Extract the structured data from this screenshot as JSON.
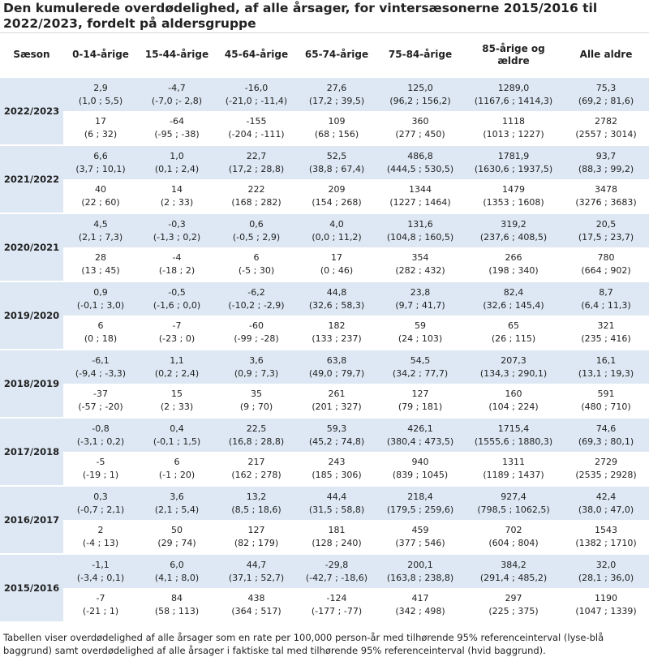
{
  "title": "Den kumulerede overdødelighed, af alle årsager, for vintersæsonerne 2015/2016 til 2022/2023, fordelt på aldersgruppe",
  "headers": [
    "Sæson",
    "0-14-årige",
    "15-44-årige",
    "45-64-årige",
    "65-74-årige",
    "75-84-årige",
    "85-årige og ældre",
    "Alle aldre"
  ],
  "seasons": [
    {
      "label": "2022/2023",
      "rate": [
        [
          "2,9",
          "(1,0 ; 5,5)"
        ],
        [
          "-4,7",
          "(-7,0 ;- 2,8)"
        ],
        [
          "-16,0",
          "(-21,0 ; -11,4)"
        ],
        [
          "27,6",
          "(17,2 ; 39,5)"
        ],
        [
          "125,0",
          "(96,2 ; 156,2)"
        ],
        [
          "1289,0",
          "(1167,6 ; 1414,3)"
        ],
        [
          "75,3",
          "(69,2 ; 81,6)"
        ]
      ],
      "count": [
        [
          "17",
          "(6 ; 32)"
        ],
        [
          "-64",
          "(-95 ; -38)"
        ],
        [
          "-155",
          "(-204 ; -111)"
        ],
        [
          "109",
          "(68 ; 156)"
        ],
        [
          "360",
          "(277 ; 450)"
        ],
        [
          "1118",
          "(1013 ; 1227)"
        ],
        [
          "2782",
          "(2557 ; 3014)"
        ]
      ]
    },
    {
      "label": "2021/2022",
      "rate": [
        [
          "6,6",
          "(3,7 ; 10,1)"
        ],
        [
          "1,0",
          "(0,1 ; 2,4)"
        ],
        [
          "22,7",
          "(17,2 ; 28,8)"
        ],
        [
          "52,5",
          "(38,8 ; 67,4)"
        ],
        [
          "486,8",
          "(444,5 ; 530,5)"
        ],
        [
          "1781,9",
          "(1630,6 ; 1937,5)"
        ],
        [
          "93,7",
          "(88,3 ; 99,2)"
        ]
      ],
      "count": [
        [
          "40",
          "(22 ; 60)"
        ],
        [
          "14",
          "(2 ; 33)"
        ],
        [
          "222",
          "(168 ; 282)"
        ],
        [
          "209",
          "(154 ; 268)"
        ],
        [
          "1344",
          "(1227 ; 1464)"
        ],
        [
          "1479",
          "(1353 ; 1608)"
        ],
        [
          "3478",
          "(3276 ; 3683)"
        ]
      ]
    },
    {
      "label": "2020/2021",
      "rate": [
        [
          "4,5",
          "(2,1 ; 7,3)"
        ],
        [
          "-0,3",
          "(-1,3 ; 0,2)"
        ],
        [
          "0,6",
          "(-0,5 ; 2,9)"
        ],
        [
          "4,0",
          "(0,0 ; 11,2)"
        ],
        [
          "131,6",
          "(104,8 ; 160,5)"
        ],
        [
          "319,2",
          "(237,6 ; 408,5)"
        ],
        [
          "20,5",
          "(17,5 ; 23,7)"
        ]
      ],
      "count": [
        [
          "28",
          "(13 ; 45)"
        ],
        [
          "-4",
          "(-18 ; 2)"
        ],
        [
          "6",
          "(-5 ; 30)"
        ],
        [
          "17",
          "(0 ; 46)"
        ],
        [
          "354",
          "(282 ; 432)"
        ],
        [
          "266",
          "(198 ; 340)"
        ],
        [
          "780",
          "(664 ; 902)"
        ]
      ]
    },
    {
      "label": "2019/2020",
      "rate": [
        [
          "0,9",
          "(-0,1 ; 3,0)"
        ],
        [
          "-0,5",
          "(-1,6 ; 0,0)"
        ],
        [
          "-6,2",
          "(-10,2 ; -2,9)"
        ],
        [
          "44,8",
          "(32,6 ; 58,3)"
        ],
        [
          "23,8",
          "(9,7 ; 41,7)"
        ],
        [
          "82,4",
          "(32,6 ; 145,4)"
        ],
        [
          "8,7",
          "(6,4 ; 11,3)"
        ]
      ],
      "count": [
        [
          "6",
          "(0 ; 18)"
        ],
        [
          "-7",
          "(-23 ; 0)"
        ],
        [
          "-60",
          "(-99 ; -28)"
        ],
        [
          "182",
          "(133 ; 237)"
        ],
        [
          "59",
          "(24 ; 103)"
        ],
        [
          "65",
          "(26 ; 115)"
        ],
        [
          "321",
          "(235 ; 416)"
        ]
      ]
    },
    {
      "label": "2018/2019",
      "rate": [
        [
          "-6,1",
          "(-9,4 ; -3,3)"
        ],
        [
          "1,1",
          "(0,2 ; 2,4)"
        ],
        [
          "3,6",
          "(0,9 ; 7,3)"
        ],
        [
          "63,8",
          "(49,0 ; 79,7)"
        ],
        [
          "54,5",
          "(34,2 ; 77,7)"
        ],
        [
          "207,3",
          "(134,3 ; 290,1)"
        ],
        [
          "16,1",
          "(13,1 ; 19,3)"
        ]
      ],
      "count": [
        [
          "-37",
          "(-57 ; -20)"
        ],
        [
          "15",
          "(2 ; 33)"
        ],
        [
          "35",
          "(9 ; 70)"
        ],
        [
          "261",
          "(201 ; 327)"
        ],
        [
          "127",
          "(79 ; 181)"
        ],
        [
          "160",
          "(104 ; 224)"
        ],
        [
          "591",
          "(480 ; 710)"
        ]
      ]
    },
    {
      "label": "2017/2018",
      "rate": [
        [
          "-0,8",
          "(-3,1 ; 0,2)"
        ],
        [
          "0,4",
          "(-0,1 ; 1,5)"
        ],
        [
          "22,5",
          "(16,8 ; 28,8)"
        ],
        [
          "59,3",
          "(45,2 ; 74,8)"
        ],
        [
          "426,1",
          "(380,4 ; 473,5)"
        ],
        [
          "1715,4",
          "(1555,6 ; 1880,3)"
        ],
        [
          "74,6",
          "(69,3 ; 80,1)"
        ]
      ],
      "count": [
        [
          "-5",
          "(-19 ; 1)"
        ],
        [
          "6",
          "(-1 ; 20)"
        ],
        [
          "217",
          "(162 ; 278)"
        ],
        [
          "243",
          "(185 ; 306)"
        ],
        [
          "940",
          "(839 ; 1045)"
        ],
        [
          "1311",
          "(1189 ; 1437)"
        ],
        [
          "2729",
          "(2535 ; 2928)"
        ]
      ]
    },
    {
      "label": "2016/2017",
      "rate": [
        [
          "0,3",
          "(-0,7 ; 2,1)"
        ],
        [
          "3,6",
          "(2,1 ; 5,4)"
        ],
        [
          "13,2",
          "(8,5 ; 18,6)"
        ],
        [
          "44,4",
          "(31,5 ; 58,8)"
        ],
        [
          "218,4",
          "(179,5 ; 259,6)"
        ],
        [
          "927,4",
          "(798,5 ; 1062,5)"
        ],
        [
          "42,4",
          "(38,0 ; 47,0)"
        ]
      ],
      "count": [
        [
          "2",
          "(-4 ; 13)"
        ],
        [
          "50",
          "(29 ; 74)"
        ],
        [
          "127",
          "(82 ; 179)"
        ],
        [
          "181",
          "(128 ; 240)"
        ],
        [
          "459",
          "(377 ; 546)"
        ],
        [
          "702",
          "(604 ; 804)"
        ],
        [
          "1543",
          "(1382 ; 1710)"
        ]
      ]
    },
    {
      "label": "2015/2016",
      "rate": [
        [
          "-1,1",
          "(-3,4 ; 0,1)"
        ],
        [
          "6,0",
          "(4,1 ; 8,0)"
        ],
        [
          "44,7",
          "(37,1 ; 52,7)"
        ],
        [
          "-29,8",
          "(-42,7 ; -18,6)"
        ],
        [
          "200,1",
          "(163,8 ; 238,8)"
        ],
        [
          "384,2",
          "(291,4 ; 485,2)"
        ],
        [
          "32,0",
          "(28,1 ; 36,0)"
        ]
      ],
      "count": [
        [
          "-7",
          "(-21 ; 1)"
        ],
        [
          "84",
          "(58 ; 113)"
        ],
        [
          "438",
          "(364 ; 517)"
        ],
        [
          "-124",
          "(-177 ; -77)"
        ],
        [
          "417",
          "(342 ; 498)"
        ],
        [
          "297",
          "(225 ; 375)"
        ],
        [
          "1190",
          "(1047 ; 1339)"
        ]
      ]
    }
  ],
  "footnote": "Tabellen viser overdødelighed af alle årsager som en rate per 100,000 person-år med tilhørende 95% referenceinterval (lyse-blå baggrund) samt overdødelighed af alle årsager i faktiske tal med tilhørende 95% referenceinterval (hvid baggrund)."
}
